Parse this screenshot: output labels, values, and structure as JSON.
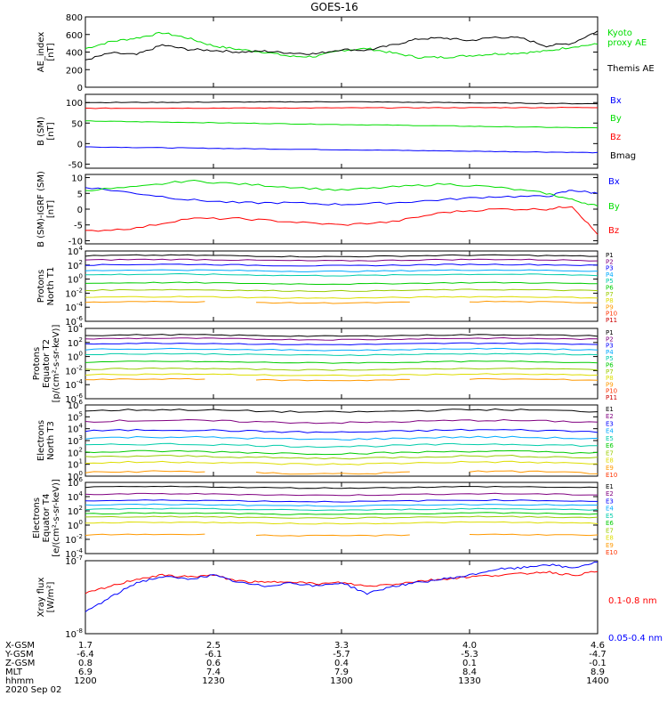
{
  "title": "GOES-16",
  "colors": {
    "black": "#000000",
    "red": "#ff0000",
    "green": "#00dd00",
    "blue": "#0000ff",
    "cyan": "#00bcd4",
    "yellow": "#e6d600",
    "orange": "#ff9900",
    "magenta": "#cc00cc",
    "p_colors": [
      "#000000",
      "#800080",
      "#0000ff",
      "#00aaff",
      "#00ccaa",
      "#00cc00",
      "#99cc00",
      "#dddd00",
      "#ff9900",
      "#ff3300",
      "#cc0000"
    ],
    "e_colors": [
      "#000000",
      "#800080",
      "#0000ff",
      "#00aaff",
      "#00ccaa",
      "#00cc00",
      "#99cc00",
      "#dddd00",
      "#ff9900",
      "#ff3300",
      "#cc0000"
    ]
  },
  "chart_data": [
    {
      "type": "line",
      "ylabel": "AE_index\n[nT]",
      "ylim": [
        0,
        800
      ],
      "yticks": [
        "0",
        "200",
        "400",
        "600",
        "800"
      ],
      "series": [
        {
          "name": "Kyoto\nproxy AE",
          "color": "#00dd00",
          "x": [
            1200,
            1210,
            1220,
            1230,
            1240,
            1250,
            1260,
            1270,
            1280,
            1290,
            1300,
            1310,
            1320,
            1330,
            1340,
            1350,
            1360,
            1370,
            1380,
            1390,
            1400
          ],
          "values": [
            440,
            520,
            560,
            620,
            560,
            470,
            430,
            400,
            350,
            350,
            420,
            440,
            390,
            340,
            340,
            360,
            380,
            390,
            410,
            460,
            490
          ]
        },
        {
          "name": "Themis AE",
          "color": "#000000",
          "x": [
            1200,
            1210,
            1220,
            1230,
            1240,
            1250,
            1260,
            1270,
            1280,
            1290,
            1300,
            1310,
            1320,
            1330,
            1340,
            1350,
            1360,
            1370,
            1380,
            1390,
            1400
          ],
          "values": [
            310,
            390,
            370,
            480,
            430,
            420,
            400,
            410,
            390,
            380,
            430,
            420,
            480,
            550,
            560,
            530,
            570,
            560,
            470,
            500,
            640
          ]
        }
      ]
    },
    {
      "type": "line",
      "ylabel": "B (SM)\n[nT]",
      "ylim": [
        -60,
        120
      ],
      "yticks": [
        "-50",
        "0",
        "50",
        "100"
      ],
      "series": [
        {
          "name": "Bx",
          "color": "#0000ff",
          "x": [
            1200,
            1400
          ],
          "values": [
            -8,
            -22
          ]
        },
        {
          "name": "By",
          "color": "#00dd00",
          "x": [
            1200,
            1400
          ],
          "values": [
            55,
            38
          ]
        },
        {
          "name": "Bz",
          "color": "#ff0000",
          "x": [
            1200,
            1400
          ],
          "values": [
            86,
            88
          ]
        },
        {
          "name": "Bmag",
          "color": "#000000",
          "x": [
            1200,
            1300,
            1400
          ],
          "values": [
            100,
            102,
            97
          ]
        }
      ]
    },
    {
      "type": "line",
      "ylabel": "B (SM)-IGRF (SM)\n[nT]",
      "ylim": [
        -11,
        11
      ],
      "yticks": [
        "-10",
        "-5",
        "0",
        "5",
        "10"
      ],
      "series": [
        {
          "name": "Bx",
          "color": "#0000ff",
          "x": [
            1200,
            1220,
            1240,
            1260,
            1280,
            1300,
            1320,
            1340,
            1360,
            1380,
            1390,
            1400
          ],
          "values": [
            7,
            5,
            3,
            2,
            2,
            1.5,
            2,
            3,
            4,
            4,
            6,
            5
          ]
        },
        {
          "name": "By",
          "color": "#00dd00",
          "x": [
            1200,
            1220,
            1240,
            1260,
            1280,
            1300,
            1320,
            1340,
            1360,
            1380,
            1390,
            1400
          ],
          "values": [
            6,
            7,
            9,
            8,
            7,
            6,
            7,
            8,
            7,
            5,
            3,
            1
          ]
        },
        {
          "name": "Bz",
          "color": "#ff0000",
          "x": [
            1200,
            1220,
            1240,
            1260,
            1280,
            1300,
            1320,
            1340,
            1360,
            1380,
            1390,
            1400
          ],
          "values": [
            -7,
            -6,
            -3,
            -3,
            -4,
            -5,
            -4,
            -1,
            0,
            0,
            1,
            -8
          ]
        }
      ]
    },
    {
      "type": "line",
      "log": true,
      "ylabel": "Protons\nNorth T1",
      "ylim_exp": [
        -6,
        4
      ],
      "yticks": [
        "10^4",
        "10^2",
        "10^0",
        "10^-2",
        "10^-4",
        "10^-6"
      ],
      "series_names": [
        "P1",
        "P2",
        "P3",
        "P4",
        "P5",
        "P6",
        "P7",
        "P8",
        "P9",
        "P10",
        "P11"
      ],
      "levels_exp": [
        3.3,
        2.7,
        2.0,
        1.2,
        0.6,
        -0.6,
        -1.6,
        -2.6,
        -3.3,
        null,
        null
      ]
    },
    {
      "type": "line",
      "log": true,
      "ylabel": "Protons\nEquator T2\n[p/(cm²-s-sr-keV)]",
      "ylim_exp": [
        -6,
        4
      ],
      "yticks": [
        "10^4",
        "10^2",
        "10^0",
        "10^-2",
        "10^-4",
        "10^-6"
      ],
      "series_names": [
        "P1",
        "P2",
        "P3",
        "P4",
        "P5",
        "P6",
        "P7",
        "P8",
        "P9",
        "P10",
        "P11"
      ],
      "levels_exp": [
        3.0,
        2.5,
        1.8,
        1.0,
        0.3,
        -0.8,
        -1.8,
        -2.6,
        -3.3,
        null,
        null
      ]
    },
    {
      "type": "line",
      "log": true,
      "ylabel": "Electrons\nNorth T3",
      "ylim_exp": [
        0,
        6
      ],
      "yticks": [
        "10^6",
        "10^5",
        "10^4",
        "10^3",
        "10^2",
        "10^1",
        "10^0"
      ],
      "series_names": [
        "E1",
        "E2",
        "E3",
        "E4",
        "E5",
        "E6",
        "E7",
        "E8",
        "E9",
        "E10"
      ],
      "levels_exp": [
        5.5,
        4.6,
        3.8,
        3.2,
        2.6,
        2.0,
        1.6,
        1.1,
        0.3,
        null
      ]
    },
    {
      "type": "line",
      "log": true,
      "ylabel": "Electrons\nEquator T4\n[e/(cm²-s-sr-keV)]",
      "ylim_exp": [
        -4,
        6
      ],
      "yticks": [
        "10^6",
        "10^4",
        "10^2",
        "10^0",
        "10^-2",
        "10^-4"
      ],
      "series_names": [
        "E1",
        "E2",
        "E3",
        "E4",
        "E5",
        "E6",
        "E7",
        "E8",
        "E9",
        "E10"
      ],
      "levels_exp": [
        5.3,
        4.3,
        3.4,
        2.8,
        2.2,
        1.6,
        1.1,
        0.3,
        -1.4,
        null
      ]
    },
    {
      "type": "line",
      "log": true,
      "ylabel": "Xray flux\n[W/m²]",
      "ylim_exp": [
        -8,
        -7
      ],
      "yticks": [
        "10^-7",
        "10^-8"
      ],
      "series": [
        {
          "name": "0.1-0.8 nm",
          "color": "#ff0000",
          "x": [
            1200,
            1210,
            1220,
            1230,
            1240,
            1250,
            1260,
            1270,
            1280,
            1290,
            1300,
            1310,
            1320,
            1330,
            1340,
            1350,
            1360,
            1370,
            1380,
            1390,
            1400
          ],
          "values": [
            -7.45,
            -7.35,
            -7.25,
            -7.2,
            -7.22,
            -7.2,
            -7.28,
            -7.3,
            -7.28,
            -7.32,
            -7.3,
            -7.35,
            -7.32,
            -7.28,
            -7.25,
            -7.22,
            -7.2,
            -7.18,
            -7.15,
            -7.2,
            -7.15
          ]
        },
        {
          "name": "0.05-0.4 nm",
          "color": "#0000ff",
          "x": [
            1200,
            1210,
            1220,
            1230,
            1240,
            1250,
            1260,
            1270,
            1280,
            1290,
            1300,
            1310,
            1320,
            1330,
            1340,
            1350,
            1360,
            1370,
            1380,
            1390,
            1400
          ],
          "values": [
            -7.7,
            -7.5,
            -7.3,
            -7.22,
            -7.25,
            -7.2,
            -7.3,
            -7.35,
            -7.3,
            -7.35,
            -7.3,
            -7.45,
            -7.35,
            -7.3,
            -7.25,
            -7.2,
            -7.12,
            -7.1,
            -7.05,
            -7.1,
            -7.02
          ]
        }
      ]
    }
  ],
  "xaxis": {
    "row_labels": [
      "X-GSM",
      "Y-GSM",
      "Z-GSM",
      "MLT",
      "hhmm"
    ],
    "columns": [
      {
        "vals": [
          "1.7",
          "-6.4",
          "0.8",
          "6.9",
          "1200"
        ]
      },
      {
        "vals": [
          "2.5",
          "-6.1",
          "0.6",
          "7.4",
          "1230"
        ]
      },
      {
        "vals": [
          "3.3",
          "-5.7",
          "0.4",
          "7.9",
          "1300"
        ]
      },
      {
        "vals": [
          "4.0",
          "-5.3",
          "0.1",
          "8.4",
          "1330"
        ]
      },
      {
        "vals": [
          "4.6",
          "-4.7",
          "-0.1",
          "8.9",
          "1400"
        ]
      }
    ],
    "date": "2020 Sep 02"
  }
}
